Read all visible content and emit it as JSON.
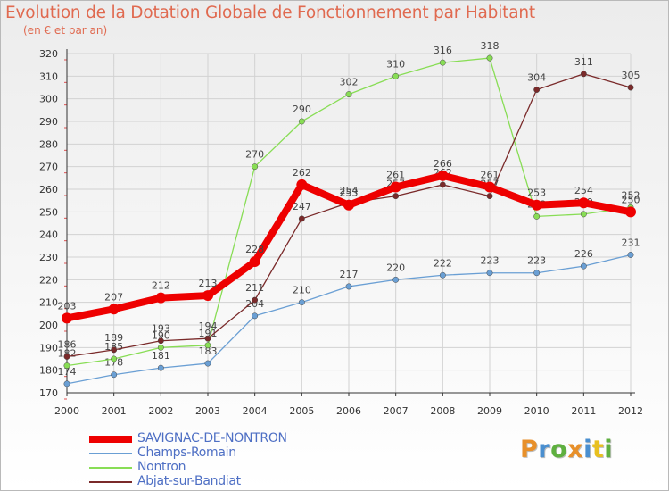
{
  "page": {
    "title": "Evolution de la Dotation Globale de Fonctionnement par Habitant",
    "subtitle": "(en € et par an)"
  },
  "chart_data": {
    "type": "line",
    "title": "Evolution de la Dotation Globale de Fonctionnement par Habitant",
    "subtitle": "(en € et par an)",
    "xlabel": "",
    "ylabel": "",
    "x": [
      2000,
      2001,
      2002,
      2003,
      2004,
      2005,
      2006,
      2007,
      2008,
      2009,
      2010,
      2011,
      2012
    ],
    "ylim": [
      170,
      320
    ],
    "yticks": [
      170,
      180,
      190,
      200,
      210,
      220,
      230,
      240,
      250,
      260,
      270,
      280,
      290,
      300,
      310,
      320
    ],
    "grid": true,
    "legend_position": "bottom-left",
    "series": [
      {
        "name": "SAVIGNAC-DE-NONTRON",
        "color": "#ee0000",
        "values": [
          203,
          207,
          212,
          213,
          228,
          262,
          253,
          261,
          266,
          261,
          253,
          254,
          250
        ]
      },
      {
        "name": "Champs-Romain",
        "color": "#6a9fd4",
        "values": [
          174,
          178,
          181,
          183,
          204,
          210,
          217,
          220,
          222,
          223,
          223,
          226,
          231
        ]
      },
      {
        "name": "Nontron",
        "color": "#88dd55",
        "values": [
          182,
          185,
          190,
          191,
          270,
          290,
          302,
          310,
          316,
          318,
          248,
          249,
          252
        ]
      },
      {
        "name": "Abjat-sur-Bandiat",
        "color": "#7a2a2a",
        "values": [
          186,
          189,
          193,
          194,
          211,
          247,
          254,
          257,
          262,
          257,
          304,
          311,
          305
        ]
      }
    ]
  },
  "logo": {
    "letters": [
      "P",
      "r",
      "o",
      "x",
      "i",
      "t",
      "i"
    ],
    "colors": [
      "#e8902a",
      "#4a8fd0",
      "#5fb040",
      "#e8902a",
      "#4a8fd0",
      "#e8c020",
      "#5fb040"
    ]
  }
}
